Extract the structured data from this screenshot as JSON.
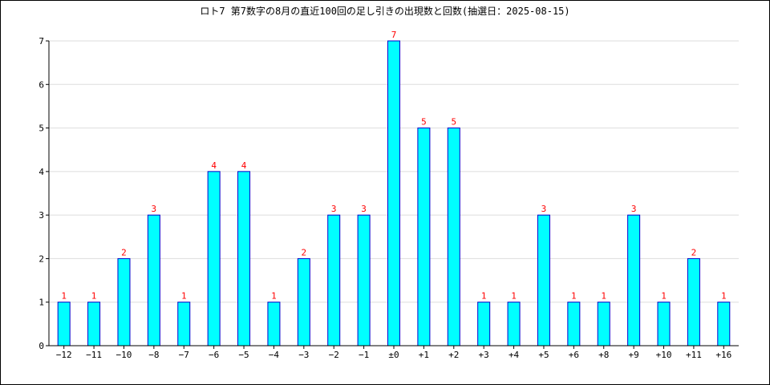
{
  "chart_data": {
    "type": "bar",
    "title": "ロト7 第7数字の8月の直近100回の足し引きの出現数と回数(抽選日：2025-08-15)",
    "xlabel": "",
    "ylabel": "",
    "categories": [
      "−12",
      "−11",
      "−10",
      "−8",
      "−7",
      "−6",
      "−5",
      "−4",
      "−3",
      "−2",
      "−1",
      "±0",
      "+1",
      "+2",
      "+3",
      "+4",
      "+5",
      "+6",
      "+8",
      "+9",
      "+10",
      "+11",
      "+16"
    ],
    "values": [
      1,
      1,
      2,
      3,
      1,
      4,
      4,
      1,
      2,
      3,
      3,
      7,
      5,
      5,
      1,
      1,
      3,
      1,
      1,
      3,
      1,
      2,
      1
    ],
    "ylim": [
      0,
      7
    ],
    "yticks": [
      0,
      1,
      2,
      3,
      4,
      5,
      6,
      7
    ],
    "grid": "horizontal",
    "legend": "none",
    "colors": {
      "bar_fill": "#00ffff",
      "bar_stroke": "#0000cc",
      "data_label": "#ff0000",
      "grid": "#dddddd",
      "axis": "#000000"
    }
  }
}
